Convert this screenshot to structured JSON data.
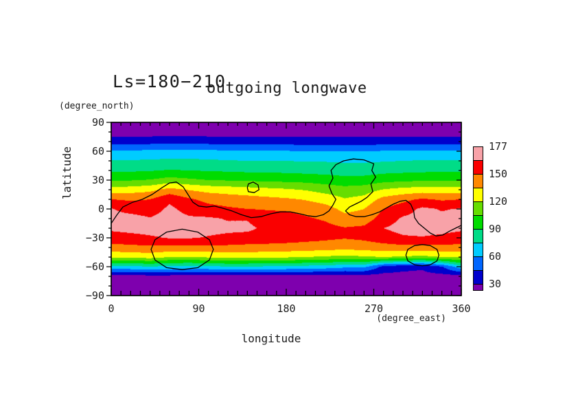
{
  "chart_data": {
    "type": "filled_contour_map",
    "ls_label": "Ls=180−210",
    "title": "outgoing longwave",
    "xlabel": "longitude",
    "x_unit": "(degree_east)",
    "ylabel": "latitude",
    "y_unit": "(degree_north)",
    "xlim": [
      0,
      360
    ],
    "ylim": [
      -90,
      90
    ],
    "x_tick_values": [
      0,
      90,
      180,
      270,
      360
    ],
    "x_tick_labels": [
      "0",
      "90",
      "180",
      "270",
      "360"
    ],
    "y_tick_values": [
      90,
      60,
      30,
      0,
      -30,
      -60,
      -90
    ],
    "y_tick_labels": [
      "90",
      "60",
      "30",
      "0",
      "−30",
      "−60",
      "−90"
    ],
    "minor_tick_step_lon": 10,
    "minor_tick_step_lat": 10,
    "levels": [
      30,
      45,
      60,
      75,
      90,
      105,
      120,
      135,
      150,
      165
    ],
    "band_colors": [
      "#7E00AE",
      "#0000CD",
      "#0066FF",
      "#00CCFF",
      "#00DC87",
      "#00DC00",
      "#66DD00",
      "#FFFF00",
      "#FF8800",
      "#FA0000",
      "#F8A2A8"
    ],
    "colorbar": {
      "labels": [
        "177",
        "150",
        "120",
        "90",
        "60",
        "30"
      ],
      "label_boundary_from_top": [
        0,
        2,
        4,
        6,
        8,
        10
      ]
    },
    "grid": {
      "lons": [
        0,
        20,
        40,
        60,
        80,
        100,
        120,
        140,
        160,
        180,
        200,
        220,
        240,
        260,
        280,
        300,
        320,
        340,
        360
      ],
      "lats": [
        90,
        80,
        70,
        60,
        50,
        40,
        30,
        20,
        10,
        0,
        -10,
        -20,
        -30,
        -40,
        -50,
        -60,
        -70,
        -80,
        -90
      ],
      "values": [
        [
          18,
          22,
          38,
          62,
          76,
          88,
          103,
          126,
          150,
          166,
          169,
          168,
          158,
          145,
          122,
          70,
          24,
          16,
          13
        ],
        [
          18,
          22,
          38,
          62,
          76,
          88,
          104,
          128,
          148,
          160,
          170,
          170,
          160,
          146,
          124,
          72,
          24,
          16,
          13
        ],
        [
          18,
          22,
          39,
          63,
          77,
          89,
          106,
          131,
          150,
          158,
          166,
          171,
          163,
          147,
          126,
          74,
          25,
          16,
          13
        ],
        [
          18,
          23,
          40,
          64,
          78,
          91,
          111,
          140,
          162,
          168,
          171,
          171,
          166,
          146,
          120,
          72,
          25,
          16,
          13
        ],
        [
          18,
          23,
          40,
          64,
          78,
          90,
          108,
          134,
          152,
          160,
          167,
          170,
          166,
          146,
          120,
          70,
          24,
          16,
          13
        ],
        [
          18,
          22,
          39,
          63,
          77,
          89,
          105,
          130,
          146,
          155,
          167,
          169,
          164,
          146,
          122,
          72,
          24,
          16,
          13
        ],
        [
          18,
          22,
          38,
          62,
          76,
          88,
          104,
          128,
          143,
          152,
          164,
          168,
          162,
          146,
          125,
          74,
          24,
          16,
          13
        ],
        [
          18,
          22,
          38,
          61,
          75,
          87,
          103,
          126,
          141,
          150,
          164,
          168,
          160,
          145,
          124,
          74,
          24,
          16,
          13
        ],
        [
          18,
          22,
          38,
          61,
          75,
          87,
          102,
          124,
          139,
          149,
          157,
          162,
          158,
          145,
          123,
          73,
          24,
          16,
          13
        ],
        [
          18,
          22,
          38,
          61,
          75,
          86,
          101,
          122,
          137,
          148,
          156,
          161,
          157,
          144,
          122,
          72,
          24,
          16,
          13
        ],
        [
          18,
          22,
          37,
          60,
          74,
          85,
          100,
          119,
          134,
          145,
          152,
          158,
          155,
          143,
          120,
          70,
          24,
          16,
          13
        ],
        [
          18,
          22,
          37,
          60,
          74,
          84,
          98,
          114,
          129,
          141,
          148,
          155,
          153,
          142,
          118,
          68,
          24,
          16,
          13
        ],
        [
          18,
          22,
          37,
          60,
          73,
          83,
          95,
          111,
          121,
          131,
          140,
          151,
          151,
          140,
          116,
          64,
          23,
          16,
          13
        ],
        [
          18,
          22,
          37,
          60,
          73,
          83,
          96,
          113,
          125,
          135,
          142,
          153,
          153,
          142,
          118,
          64,
          24,
          16,
          13
        ],
        [
          18,
          22,
          38,
          61,
          74,
          85,
          100,
          121,
          140,
          150,
          157,
          165,
          158,
          144,
          120,
          40,
          25,
          16,
          13
        ],
        [
          18,
          22,
          38,
          62,
          75,
          86,
          102,
          125,
          146,
          158,
          167,
          170,
          163,
          145,
          118,
          34,
          26,
          16,
          13
        ],
        [
          18,
          22,
          38,
          62,
          76,
          87,
          103,
          127,
          152,
          168,
          170,
          171,
          164,
          144,
          116,
          32,
          26,
          16,
          13
        ],
        [
          18,
          22,
          38,
          62,
          76,
          88,
          103,
          127,
          148,
          164,
          168,
          170,
          162,
          146,
          120,
          44,
          25,
          16,
          13
        ],
        [
          18,
          22,
          38,
          62,
          76,
          88,
          103,
          126,
          150,
          166,
          169,
          168,
          158,
          145,
          122,
          70,
          24,
          16,
          13
        ]
      ]
    },
    "contour_overlay": {
      "name": "topography-zero-contour",
      "paths": [
        [
          [
            0,
            -15
          ],
          [
            6,
            -6
          ],
          [
            12,
            2
          ],
          [
            22,
            7
          ],
          [
            32,
            10
          ],
          [
            42,
            15
          ],
          [
            52,
            22
          ],
          [
            60,
            27
          ],
          [
            67,
            28
          ],
          [
            74,
            23
          ],
          [
            79,
            15
          ],
          [
            84,
            7
          ],
          [
            90,
            3
          ],
          [
            98,
            2
          ],
          [
            106,
            3
          ],
          [
            114,
            1
          ],
          [
            124,
            -2
          ],
          [
            134,
            -6
          ],
          [
            144,
            -9
          ],
          [
            154,
            -8
          ],
          [
            164,
            -5
          ],
          [
            174,
            -3
          ],
          [
            184,
            -3
          ],
          [
            194,
            -5
          ],
          [
            202,
            -7
          ],
          [
            210,
            -8
          ],
          [
            218,
            -6
          ],
          [
            224,
            -2
          ],
          [
            228,
            4
          ],
          [
            231,
            10
          ],
          [
            227,
            16
          ],
          [
            224,
            24
          ],
          [
            228,
            32
          ],
          [
            226,
            40
          ],
          [
            231,
            46
          ],
          [
            239,
            50
          ],
          [
            249,
            52
          ],
          [
            260,
            51
          ],
          [
            270,
            47
          ],
          [
            268,
            40
          ],
          [
            272,
            33
          ],
          [
            267,
            26
          ],
          [
            269,
            18
          ],
          [
            263,
            12
          ],
          [
            257,
            8
          ],
          [
            251,
            5
          ],
          [
            245,
            2
          ],
          [
            241,
            -2
          ],
          [
            245,
            -6
          ],
          [
            252,
            -8
          ],
          [
            260,
            -8
          ],
          [
            268,
            -6
          ],
          [
            276,
            -3
          ],
          [
            283,
            1
          ],
          [
            290,
            5
          ],
          [
            297,
            8
          ],
          [
            303,
            9
          ],
          [
            308,
            5
          ],
          [
            311,
            -2
          ],
          [
            312,
            -9
          ],
          [
            316,
            -15
          ],
          [
            322,
            -20
          ],
          [
            328,
            -25
          ],
          [
            334,
            -28
          ],
          [
            341,
            -27
          ],
          [
            348,
            -23
          ],
          [
            354,
            -20
          ],
          [
            360,
            -17
          ]
        ],
        [
          [
            140,
            22
          ],
          [
            141,
            26
          ],
          [
            146,
            28
          ],
          [
            151,
            25
          ],
          [
            152,
            20
          ],
          [
            147,
            17
          ],
          [
            141,
            18
          ],
          [
            140,
            22
          ]
        ],
        [
          [
            105,
            -42
          ],
          [
            101,
            -32
          ],
          [
            89,
            -24
          ],
          [
            73,
            -21
          ],
          [
            57,
            -24
          ],
          [
            45,
            -32
          ],
          [
            41,
            -42
          ],
          [
            45,
            -53
          ],
          [
            57,
            -61
          ],
          [
            73,
            -63
          ],
          [
            89,
            -61
          ],
          [
            101,
            -53
          ],
          [
            105,
            -42
          ]
        ],
        [
          [
            337,
            -48
          ],
          [
            335,
            -42
          ],
          [
            328,
            -38
          ],
          [
            320,
            -37
          ],
          [
            312,
            -38
          ],
          [
            305,
            -42
          ],
          [
            303,
            -48
          ],
          [
            305,
            -54
          ],
          [
            312,
            -58
          ],
          [
            320,
            -59
          ],
          [
            328,
            -58
          ],
          [
            335,
            -54
          ],
          [
            337,
            -48
          ]
        ]
      ]
    }
  }
}
